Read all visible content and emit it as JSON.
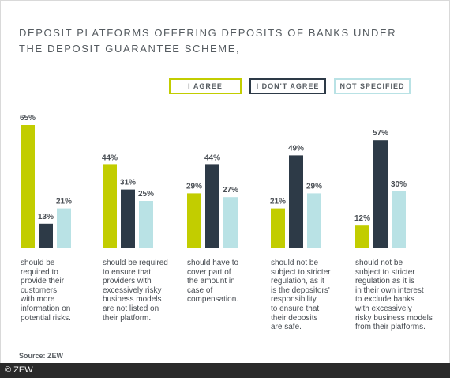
{
  "title_lines": [
    "DEPOSIT PLATFORMS OFFERING DEPOSITS OF BANKS UNDER",
    "THE DEPOSIT GUARANTEE SCHEME,"
  ],
  "source": "Source: ZEW",
  "copyright": "© ZEW",
  "colors": {
    "agree": "#c2cd00",
    "disagree": "#2d3a47",
    "not_specified": "#b9e2e5"
  },
  "chart_data": {
    "type": "bar",
    "title": "DEPOSIT PLATFORMS OFFERING DEPOSITS OF BANKS UNDER THE DEPOSIT GUARANTEE SCHEME,",
    "ylim": [
      0,
      65
    ],
    "grid": false,
    "legend_position": "top-right",
    "categories": [
      "should be required to provide their customers with more information on potential risks.",
      "should be required to ensure that providers with excessively risky business models are not listed on their platform.",
      "should have to cover part of the amount in case of compensation.",
      "should not be subject to stricter regulation, as it is the depositors' responsibility to ensure that their deposits are safe.",
      "should not be subject to stricter regulation as it is in their own interest to exclude banks with excessively risky business models from their platforms."
    ],
    "category_lines": [
      [
        "should be",
        "required to",
        "provide their",
        "customers",
        "with more",
        "information on",
        "potential risks."
      ],
      [
        "should be required",
        "to ensure that",
        "providers with",
        "excessively risky",
        "business models",
        "are not listed on",
        "their platform."
      ],
      [
        "should have to",
        "cover part of",
        "the amount in",
        "case of",
        "compensation."
      ],
      [
        "should not be",
        "subject to stricter",
        "regulation, as it",
        "is the depositors'",
        "responsibility",
        "to ensure that",
        "their deposits",
        "are safe."
      ],
      [
        "should not be",
        "subject to stricter",
        "regulation as it is",
        "in their own interest",
        "to exclude banks",
        "with excessively",
        "risky business models",
        "from their platforms."
      ]
    ],
    "series": [
      {
        "name": "I AGREE",
        "key": "agree",
        "values": [
          65,
          44,
          29,
          21,
          12
        ],
        "labels": [
          "65%",
          "44%",
          "29%",
          "21%",
          "12%"
        ]
      },
      {
        "name": "I DON'T AGREE",
        "key": "disagree",
        "values": [
          13,
          31,
          44,
          49,
          57
        ],
        "labels": [
          "13%",
          "31%",
          "44%",
          "49%",
          "57%"
        ]
      },
      {
        "name": "NOT SPECIFIED",
        "key": "not_specified",
        "values": [
          21,
          25,
          27,
          29,
          30
        ],
        "labels": [
          "21%",
          "25%",
          "27%",
          "29%",
          "30%"
        ]
      }
    ]
  }
}
